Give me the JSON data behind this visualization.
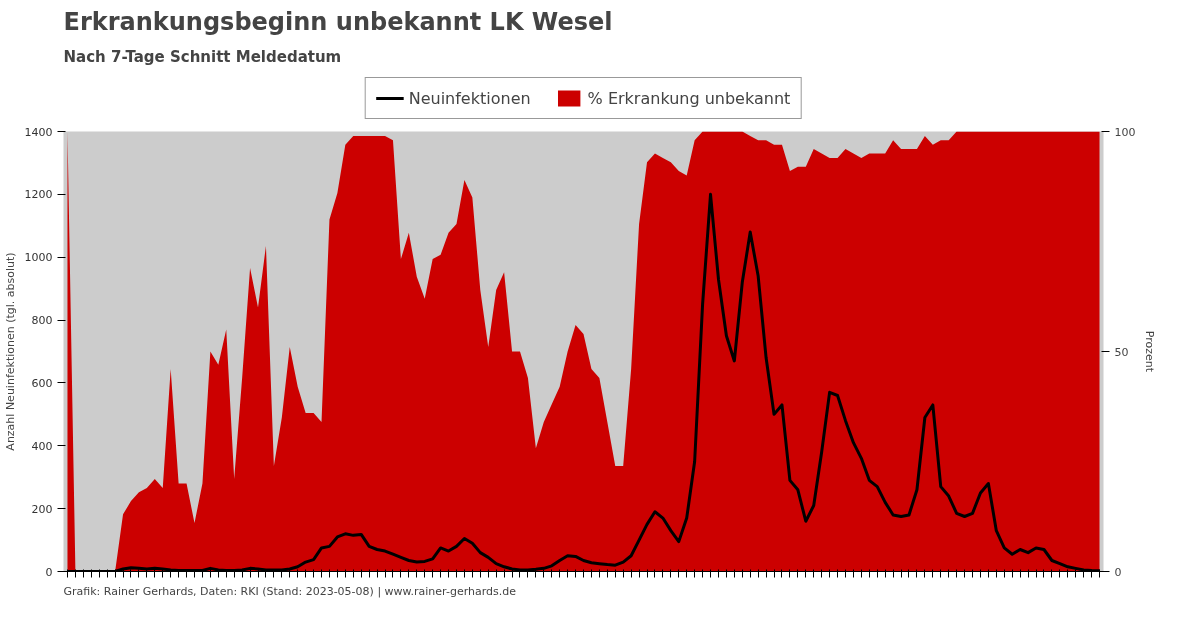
{
  "chart_data": {
    "type": "area",
    "title": "Erkrankungsbeginn unbekannt LK Wesel",
    "subtitle": "Nach 7-Tage Schnitt Meldedatum",
    "ylabel": "Anzahl Neuinfektionen (tgl. absolut)",
    "y2label": "Prozent",
    "categories": [
      null,
      null,
      null,
      null,
      null,
      null,
      null,
      null,
      null,
      null,
      null,
      null,
      null,
      null,
      null,
      null,
      null,
      null,
      null,
      null,
      null,
      null,
      null,
      null,
      null,
      null,
      null,
      null,
      null,
      null,
      null,
      null,
      null,
      null,
      null,
      null,
      null,
      null,
      null,
      null,
      null,
      null,
      null,
      null,
      null,
      null,
      null,
      null,
      null,
      null,
      null,
      null,
      null,
      null,
      null,
      null,
      null,
      null,
      null,
      null,
      null,
      null,
      null,
      null,
      null,
      null,
      null,
      null,
      null,
      null,
      null,
      null,
      null,
      null,
      null,
      null,
      null,
      null,
      null,
      null,
      null,
      null,
      null,
      null,
      null,
      null,
      null,
      null,
      null,
      null,
      null,
      null,
      null,
      null,
      null,
      null,
      null,
      null,
      null,
      null,
      null,
      null,
      null,
      null,
      null,
      null,
      null,
      null,
      null,
      null,
      null,
      null,
      null,
      null,
      null,
      null,
      null,
      null,
      null,
      null,
      null,
      null,
      null,
      null,
      null,
      null,
      null,
      null,
      null,
      null,
      null
    ],
    "series": [
      {
        "name": "% Erkrankung unbekannt",
        "axis": "y2",
        "color": "#cc0000",
        "values": [
          100,
          0,
          0,
          0,
          0,
          0,
          0,
          13,
          16,
          18,
          19,
          21,
          19,
          46,
          20,
          20,
          11,
          20,
          50,
          47,
          55,
          21,
          44,
          69,
          60,
          74,
          24,
          35,
          51,
          42,
          36,
          36,
          34,
          80,
          86,
          97,
          99,
          99,
          99,
          99,
          99,
          98,
          71,
          77,
          67,
          62,
          71,
          72,
          77,
          79,
          89,
          85,
          64,
          51,
          64,
          68,
          50,
          50,
          44,
          28,
          34,
          38,
          42,
          50,
          56,
          54,
          46,
          44,
          34,
          24,
          24,
          46,
          79,
          93,
          95,
          94,
          93,
          91,
          90,
          98,
          100,
          100,
          100,
          100,
          100,
          100,
          99,
          98,
          98,
          97,
          97,
          91,
          92,
          92,
          96,
          95,
          94,
          94,
          96,
          95,
          94,
          95,
          95,
          95,
          98,
          96,
          96,
          96,
          99,
          97,
          98,
          98,
          100,
          100,
          100,
          100,
          100,
          100,
          100,
          100,
          100,
          100,
          100,
          100,
          100,
          100,
          100,
          100,
          100,
          100,
          100
        ]
      },
      {
        "name": "Neuinfektionen",
        "type": "line",
        "axis": "y",
        "color": "#000000",
        "values": [
          0,
          0,
          0,
          0,
          0,
          0,
          0,
          8,
          12,
          10,
          8,
          10,
          8,
          5,
          3,
          3,
          3,
          3,
          10,
          5,
          3,
          3,
          5,
          10,
          8,
          5,
          5,
          5,
          8,
          15,
          30,
          38,
          75,
          80,
          110,
          120,
          115,
          118,
          80,
          70,
          65,
          55,
          45,
          35,
          30,
          32,
          40,
          75,
          65,
          80,
          105,
          90,
          60,
          45,
          25,
          15,
          8,
          5,
          5,
          7,
          10,
          18,
          35,
          50,
          48,
          35,
          28,
          25,
          22,
          20,
          30,
          50,
          100,
          150,
          190,
          170,
          130,
          95,
          170,
          350,
          850,
          1200,
          930,
          750,
          670,
          920,
          1080,
          940,
          680,
          500,
          530,
          290,
          260,
          160,
          210,
          380,
          570,
          560,
          480,
          410,
          360,
          290,
          270,
          220,
          180,
          175,
          180,
          260,
          490,
          530,
          270,
          240,
          185,
          175,
          185,
          250,
          280,
          130,
          75,
          55,
          70,
          60,
          75,
          70,
          35,
          25,
          15,
          10,
          5,
          3,
          2
        ]
      }
    ],
    "ylim": [
      0,
      1400
    ],
    "yticks": [
      0,
      200,
      400,
      600,
      800,
      1000,
      1200,
      1400
    ],
    "y2lim": [
      0,
      100
    ],
    "y2ticks": [
      0,
      50,
      100
    ],
    "legend": "top",
    "grid": false,
    "tick_labels": "y",
    "annotations": [
      "Grafik: Rainer Gerhards, Daten: RKI (Stand: 2023-05-08) | www.rainer-gerhards.de"
    ]
  }
}
